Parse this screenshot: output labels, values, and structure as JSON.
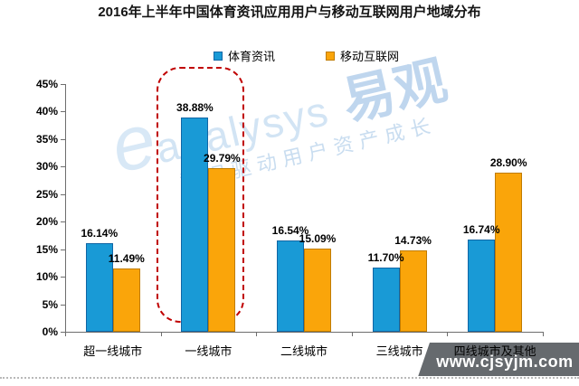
{
  "title": "2016年上半年中国体育资讯应用用户与移动互联网用户地域分布",
  "chart_data": {
    "type": "bar",
    "categories": [
      "超一线城市",
      "一线城市",
      "二线城市",
      "三线城市",
      "四线城市及其他"
    ],
    "series": [
      {
        "name": "体育资讯",
        "color": "#199AD6",
        "border_color": "#1166A5",
        "values": [
          16.14,
          38.88,
          16.54,
          11.7,
          16.74
        ]
      },
      {
        "name": "移动互联网",
        "color": "#FAA50A",
        "border_color": "#C07C00",
        "values": [
          11.49,
          29.79,
          15.09,
          14.73,
          28.9
        ]
      }
    ],
    "value_label_suffix": "%",
    "ylim": [
      0,
      45
    ],
    "ytick_step": 5,
    "ytick_suffix": "%",
    "grid": "off",
    "legend_position": "top-center",
    "highlight": {
      "category": "一线城市",
      "style": "red-dashed-rounded-rect",
      "color": "#C00000"
    }
  },
  "watermark": {
    "logo_e": "e",
    "logo_text": "analysys",
    "brand": "易观",
    "tagline": "数据驱动用户资产成长",
    "color": "#C9DDF0"
  },
  "footer": {
    "website": "www.cjsyjm.com",
    "band_color": "#666A6E"
  }
}
